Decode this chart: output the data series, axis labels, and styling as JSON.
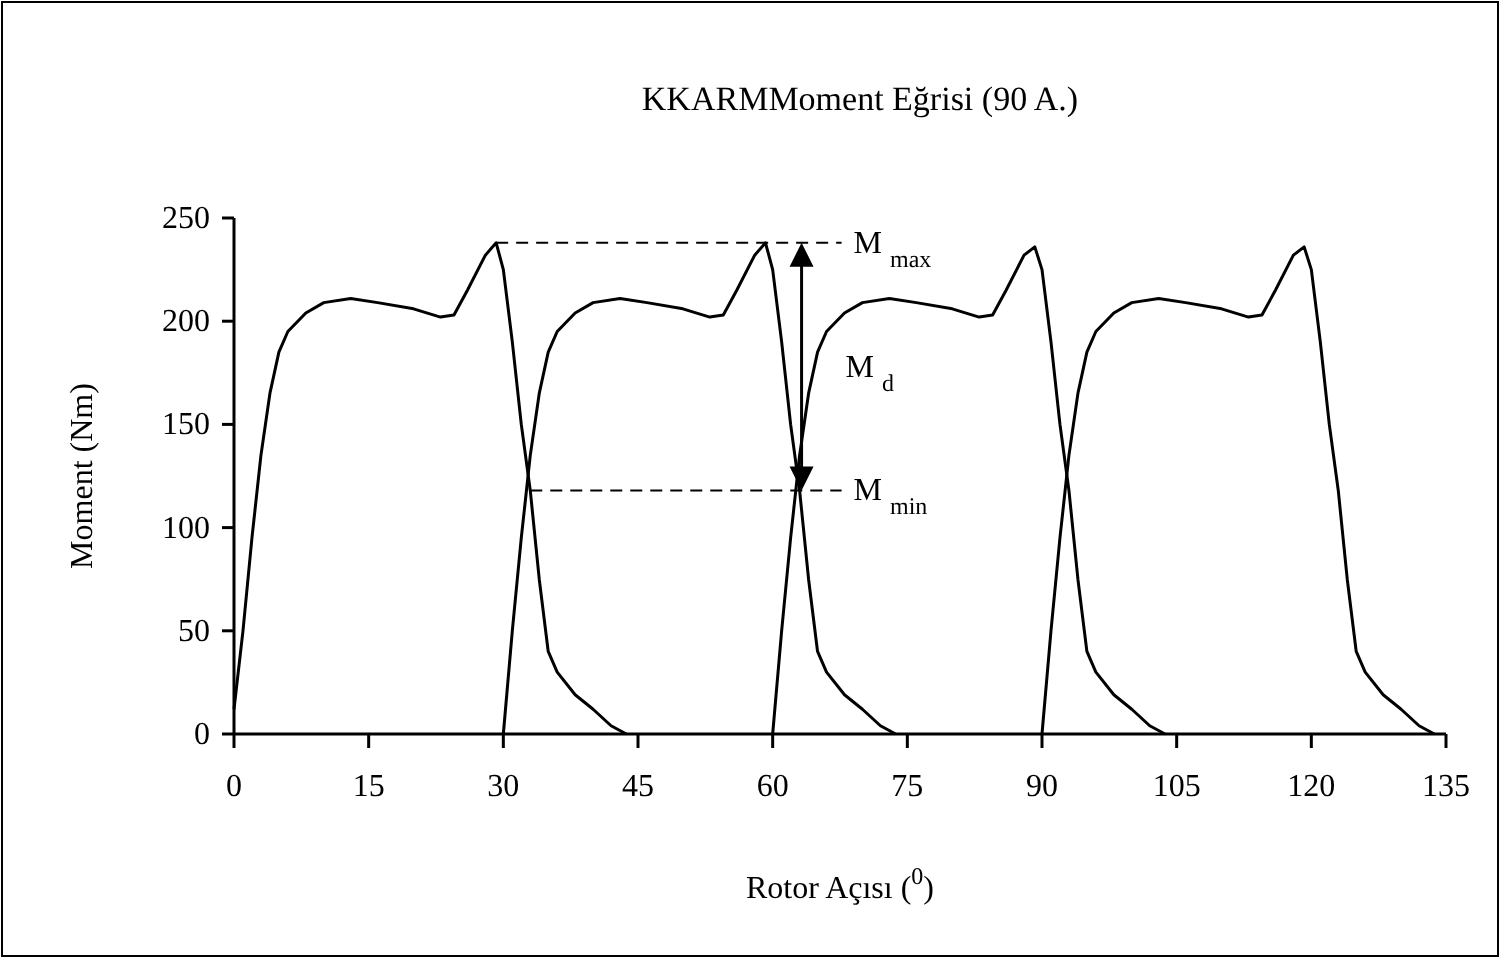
{
  "chart_data": {
    "type": "line",
    "title": "KKARMMoment Eğrisi (90 A.)",
    "xlabel": "Rotor Açısı ($^{0}$)",
    "ylabel": "Moment (Nm)",
    "xlim": [
      0,
      135
    ],
    "xticks": [
      0,
      15,
      30,
      45,
      60,
      75,
      90,
      105,
      120,
      135
    ],
    "ylim": [
      0,
      250
    ],
    "yticks": [
      0,
      50,
      100,
      150,
      200,
      250
    ],
    "grid": false,
    "marker": "none",
    "line_style": "solid",
    "series": [
      {
        "color": "#000000",
        "x": [
          0,
          1,
          2,
          3,
          4,
          5,
          6,
          8,
          10,
          13,
          16,
          20,
          23,
          24.5,
          26,
          28,
          29.2,
          30,
          31,
          32,
          33,
          34,
          35,
          36,
          38,
          40,
          42,
          43.7
        ],
        "values": [
          12,
          50,
          95,
          135,
          165,
          185,
          195,
          204,
          209,
          211,
          209,
          206,
          202,
          203,
          215,
          232,
          238,
          225,
          190,
          150,
          118,
          75,
          40,
          30,
          19,
          12,
          4,
          0
        ]
      },
      {
        "color": "#000000",
        "x": [
          30,
          31,
          32,
          33,
          34,
          35,
          36,
          38,
          40,
          43,
          46,
          50,
          53,
          54.5,
          56,
          58,
          59.2,
          60,
          61,
          62,
          63,
          64,
          65,
          66,
          68,
          70,
          72,
          73.7
        ],
        "values": [
          0,
          50,
          95,
          135,
          165,
          185,
          195,
          204,
          209,
          211,
          209,
          206,
          202,
          203,
          215,
          232,
          238,
          225,
          190,
          150,
          118,
          75,
          40,
          30,
          19,
          12,
          4,
          0
        ]
      },
      {
        "color": "#000000",
        "x": [
          60,
          61,
          62,
          63,
          64,
          65,
          66,
          68,
          70,
          73,
          76,
          80,
          83,
          84.5,
          86,
          88,
          89.2,
          90,
          91,
          92,
          93,
          94,
          95,
          96,
          98,
          100,
          102,
          103.7
        ],
        "values": [
          0,
          50,
          95,
          135,
          165,
          185,
          195,
          204,
          209,
          211,
          209,
          206,
          202,
          203,
          215,
          232,
          236,
          225,
          190,
          150,
          118,
          75,
          40,
          30,
          19,
          12,
          4,
          0
        ]
      },
      {
        "color": "#000000",
        "x": [
          90,
          91,
          92,
          93,
          94,
          95,
          96,
          98,
          100,
          103,
          106,
          110,
          113,
          114.5,
          116,
          118,
          119.2,
          120,
          121,
          122,
          123,
          124,
          125,
          126,
          128,
          130,
          132,
          133.7
        ],
        "values": [
          0,
          50,
          95,
          135,
          165,
          185,
          195,
          204,
          209,
          211,
          209,
          206,
          202,
          203,
          215,
          232,
          236,
          225,
          190,
          150,
          118,
          75,
          40,
          30,
          19,
          12,
          4,
          0
        ]
      }
    ],
    "ref_lines": [
      {
        "axis": "y",
        "value": 238,
        "label": "M $_{max}$",
        "line_style": "dashed",
        "color": "#000000"
      },
      {
        "axis": "y",
        "value": 118,
        "label": "M $_{min}$",
        "line_style": "dashed",
        "color": "#000000"
      }
    ],
    "annotations": [
      "M $_{d}$"
    ]
  }
}
